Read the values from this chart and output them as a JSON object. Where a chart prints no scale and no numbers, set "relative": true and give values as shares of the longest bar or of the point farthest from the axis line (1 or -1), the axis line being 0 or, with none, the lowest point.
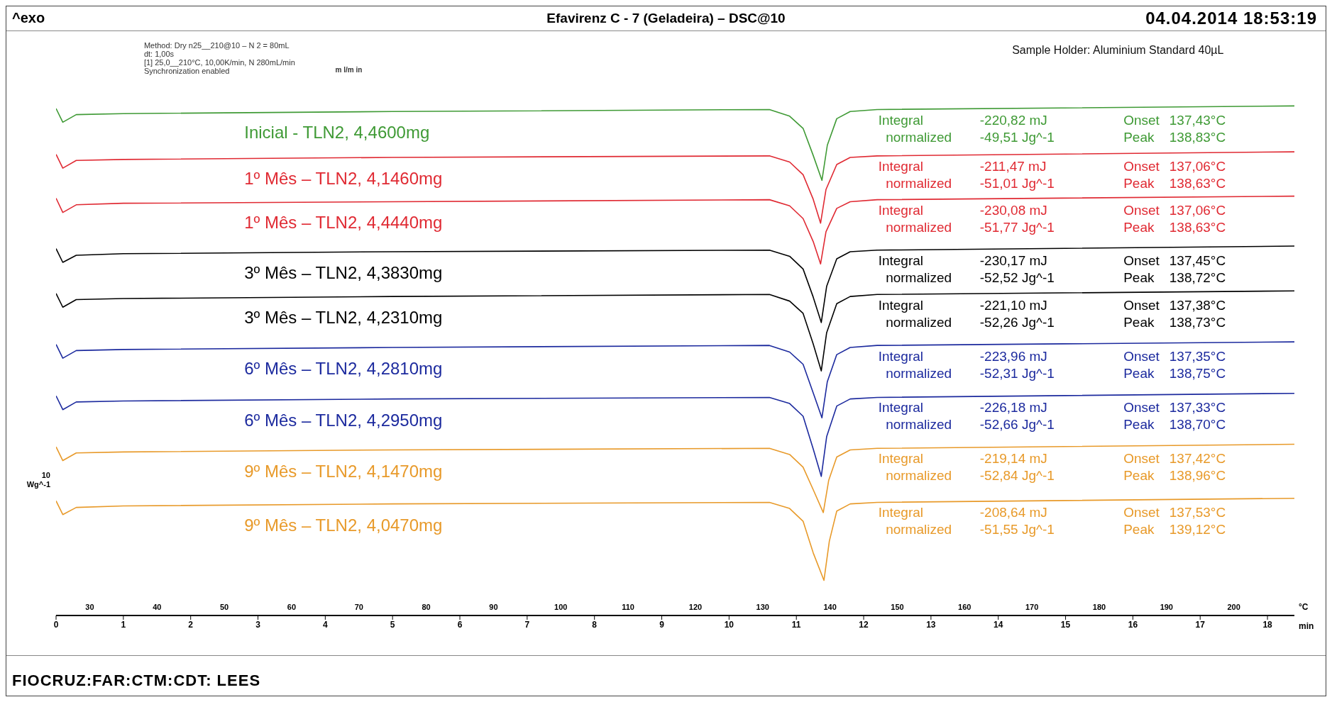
{
  "chart_data": {
    "type": "line",
    "relative": true,
    "title": "Efavirenz C - 7 (Geladeira) – DSC@10",
    "subtitle": "04.04.2014 18:53:19",
    "xlabel": "min",
    "x2label": "°C",
    "ylabel": "10 Wg^-1",
    "xlim": [
      0,
      18.4
    ],
    "xticks": [
      0,
      1,
      2,
      3,
      4,
      5,
      6,
      7,
      8,
      9,
      10,
      11,
      12,
      13,
      14,
      15,
      16,
      17,
      18
    ],
    "x2lim": [
      25,
      209
    ],
    "x2ticks": [
      30,
      40,
      50,
      60,
      70,
      80,
      90,
      100,
      110,
      120,
      130,
      140,
      150,
      160,
      170,
      180,
      190,
      200
    ],
    "series": [
      {
        "name": "Inicial - TLN2, 4,4600mg",
        "color": "#3f9a35",
        "x": [
          0,
          0.1,
          0.3,
          1,
          5,
          10.6,
          10.9,
          11.1,
          11.25,
          11.38,
          11.46,
          11.6,
          11.8,
          12.2,
          18.4
        ],
        "values": [
          0.995,
          0.968,
          0.983,
          0.985,
          0.989,
          0.993,
          0.98,
          0.956,
          0.903,
          0.854,
          0.923,
          0.975,
          0.989,
          0.993,
          1.0
        ]
      },
      {
        "name": "1º Mês – TLN2, 4,1460mg",
        "color": "#e02a33",
        "x": [
          0,
          0.1,
          0.3,
          1,
          5,
          10.6,
          10.9,
          11.1,
          11.25,
          11.36,
          11.44,
          11.6,
          11.8,
          12.2,
          18.4
        ],
        "values": [
          0.905,
          0.878,
          0.893,
          0.895,
          0.899,
          0.902,
          0.89,
          0.865,
          0.817,
          0.77,
          0.836,
          0.885,
          0.899,
          0.902,
          0.91
        ]
      },
      {
        "name": "1º Mês – TLN2, 4,4440mg",
        "color": "#e02a33",
        "x": [
          0,
          0.1,
          0.3,
          1,
          5,
          10.6,
          10.9,
          11.1,
          11.25,
          11.36,
          11.44,
          11.6,
          11.8,
          12.2,
          18.4
        ],
        "values": [
          0.819,
          0.791,
          0.806,
          0.809,
          0.812,
          0.816,
          0.804,
          0.779,
          0.734,
          0.69,
          0.753,
          0.799,
          0.812,
          0.816,
          0.823
        ]
      },
      {
        "name": "3º Mês – TLN2, 4,3830mg",
        "color": "#000000",
        "x": [
          0,
          0.1,
          0.3,
          1,
          5,
          10.6,
          10.9,
          11.1,
          11.25,
          11.37,
          11.45,
          11.6,
          11.8,
          12.2,
          18.4
        ],
        "values": [
          0.72,
          0.693,
          0.707,
          0.71,
          0.714,
          0.717,
          0.705,
          0.68,
          0.625,
          0.575,
          0.646,
          0.7,
          0.714,
          0.717,
          0.725
        ]
      },
      {
        "name": "3º Mês – TLN2, 4,2310mg",
        "color": "#000000",
        "x": [
          0,
          0.1,
          0.3,
          1,
          5,
          10.6,
          10.9,
          11.1,
          11.25,
          11.37,
          11.45,
          11.6,
          11.8,
          12.2,
          18.4
        ],
        "values": [
          0.632,
          0.605,
          0.62,
          0.622,
          0.626,
          0.63,
          0.617,
          0.593,
          0.533,
          0.48,
          0.555,
          0.612,
          0.626,
          0.63,
          0.637
        ]
      },
      {
        "name": "6º Mês – TLN2, 4,2810mg",
        "color": "#1c2a9e",
        "x": [
          0,
          0.1,
          0.3,
          1,
          5,
          10.6,
          10.9,
          11.1,
          11.25,
          11.38,
          11.46,
          11.6,
          11.8,
          12.2,
          18.4
        ],
        "values": [
          0.532,
          0.505,
          0.52,
          0.522,
          0.526,
          0.53,
          0.517,
          0.493,
          0.437,
          0.388,
          0.459,
          0.512,
          0.526,
          0.53,
          0.537
        ]
      },
      {
        "name": "6º Mês – TLN2, 4,2950mg",
        "color": "#1c2a9e",
        "x": [
          0,
          0.1,
          0.3,
          1,
          5,
          10.6,
          10.9,
          11.1,
          11.25,
          11.37,
          11.45,
          11.6,
          11.8,
          12.2,
          18.4
        ],
        "values": [
          0.431,
          0.404,
          0.419,
          0.421,
          0.425,
          0.428,
          0.416,
          0.391,
          0.327,
          0.273,
          0.351,
          0.411,
          0.425,
          0.428,
          0.436
        ]
      },
      {
        "name": "9º Mês – TLN2, 4,1470mg",
        "color": "#e89a2a",
        "x": [
          0,
          0.1,
          0.3,
          1,
          5,
          10.6,
          10.9,
          11.1,
          11.25,
          11.4,
          11.48,
          11.6,
          11.8,
          12.2,
          18.4
        ],
        "values": [
          0.331,
          0.304,
          0.319,
          0.321,
          0.325,
          0.328,
          0.316,
          0.291,
          0.247,
          0.202,
          0.265,
          0.311,
          0.325,
          0.328,
          0.336
        ]
      },
      {
        "name": "9º Mês – TLN2, 4,0470mg",
        "color": "#e89a2a",
        "x": [
          0,
          0.1,
          0.3,
          1,
          5,
          10.6,
          10.9,
          11.1,
          11.25,
          11.41,
          11.49,
          11.6,
          11.8,
          12.2,
          18.4
        ],
        "values": [
          0.225,
          0.198,
          0.212,
          0.215,
          0.219,
          0.222,
          0.21,
          0.185,
          0.123,
          0.069,
          0.146,
          0.205,
          0.219,
          0.222,
          0.23
        ]
      }
    ],
    "annotations": [
      "^exo",
      "FIOCRUZ:FAR:CTM:CDT: LEES",
      "Method: Dry n25__210@10 – N 2 = 80mL",
      "dt: 1,00s",
      "[1] 25,0__210°C, 10,00K/min, N 280mL/min",
      "m l/m in",
      "Synchronization enabled",
      "Sample Holder: Aluminium Standard 40µL",
      "Integral",
      "-220,82 mJ",
      "normalized",
      "-49,51 Jg^-1",
      "Onset",
      "137,43°C",
      "Peak",
      "138,83°C",
      "Integral",
      "-211,47 mJ",
      "normalized",
      "-51,01 Jg^-1",
      "Onset",
      "137,06°C",
      "Peak",
      "138,63°C",
      "Integral",
      "-230,08 mJ",
      "normalized",
      "-51,77 Jg^-1",
      "Onset",
      "137,06°C",
      "Peak",
      "138,63°C",
      "Integral",
      "-230,17 mJ",
      "normalized",
      "-52,52 Jg^-1",
      "Onset",
      "137,45°C",
      "Peak",
      "138,72°C",
      "Integral",
      "-221,10 mJ",
      "normalized",
      "-52,26 Jg^-1",
      "Onset",
      "137,38°C",
      "Peak",
      "138,73°C",
      "Integral",
      "-223,96 mJ",
      "normalized",
      "-52,31 Jg^-1",
      "Onset",
      "137,35°C",
      "Peak",
      "138,75°C",
      "Integral",
      "-226,18 mJ",
      "normalized",
      "-52,66 Jg^-1",
      "Onset",
      "137,33°C",
      "Peak",
      "138,70°C",
      "Integral",
      "-219,14 mJ",
      "normalized",
      "-52,84 Jg^-1",
      "Onset",
      "137,42°C",
      "Peak",
      "138,96°C",
      "Integral",
      "-208,64 mJ",
      "normalized",
      "-51,55 Jg^-1",
      "Onset",
      "137,53°C",
      "Peak",
      "139,12°C"
    ]
  }
}
